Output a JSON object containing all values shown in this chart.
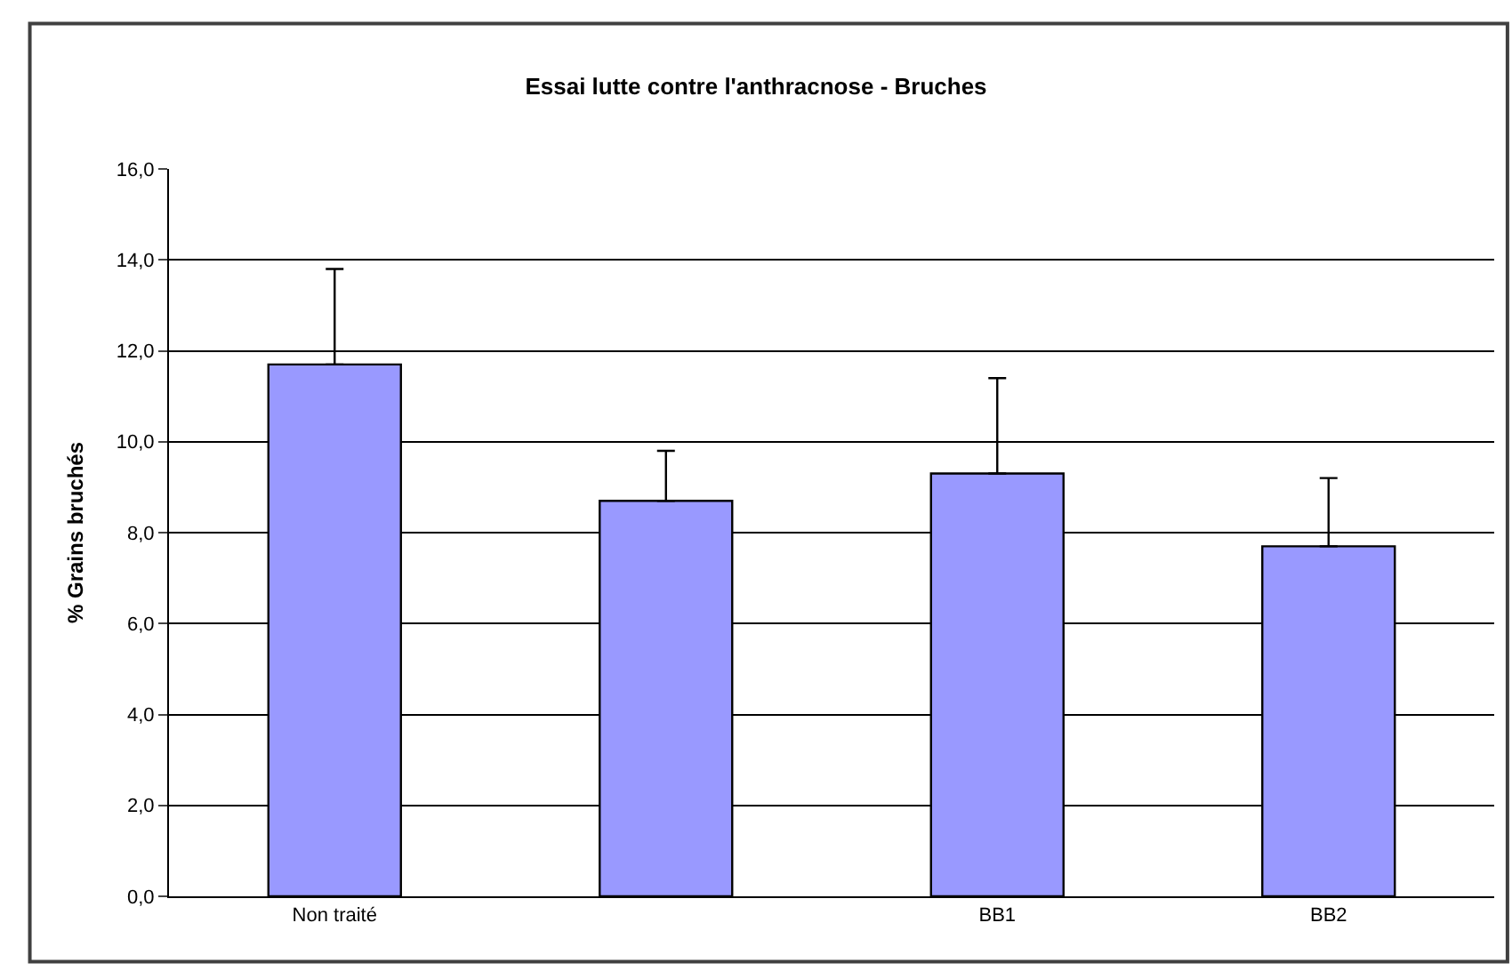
{
  "chart_data": {
    "type": "bar",
    "title": "Essai lutte contre l'anthracnose - Bruches",
    "ylabel": "% Grains bruchés",
    "categories": [
      "Non traité",
      null,
      "BB1",
      "BB2"
    ],
    "values": [
      11.7,
      8.7,
      9.3,
      7.7
    ],
    "errors": [
      [
        11.7,
        13.8
      ],
      [
        8.7,
        9.8
      ],
      [
        9.3,
        11.4
      ],
      [
        7.7,
        9.2
      ]
    ],
    "color": "#9999ff",
    "ylim": [
      0,
      16
    ],
    "yticks": [
      {
        "value": 0,
        "label": "0,0"
      },
      {
        "value": 2,
        "label": "2,0"
      },
      {
        "value": 4,
        "label": "4,0"
      },
      {
        "value": 6,
        "label": "6,0"
      },
      {
        "value": 8,
        "label": "8,0"
      },
      {
        "value": 10,
        "label": "10,0"
      },
      {
        "value": 12,
        "label": "12,0"
      },
      {
        "value": 14,
        "label": "14,0"
      },
      {
        "value": 16,
        "label": "16,0"
      }
    ],
    "grid": "y",
    "legend": false
  }
}
